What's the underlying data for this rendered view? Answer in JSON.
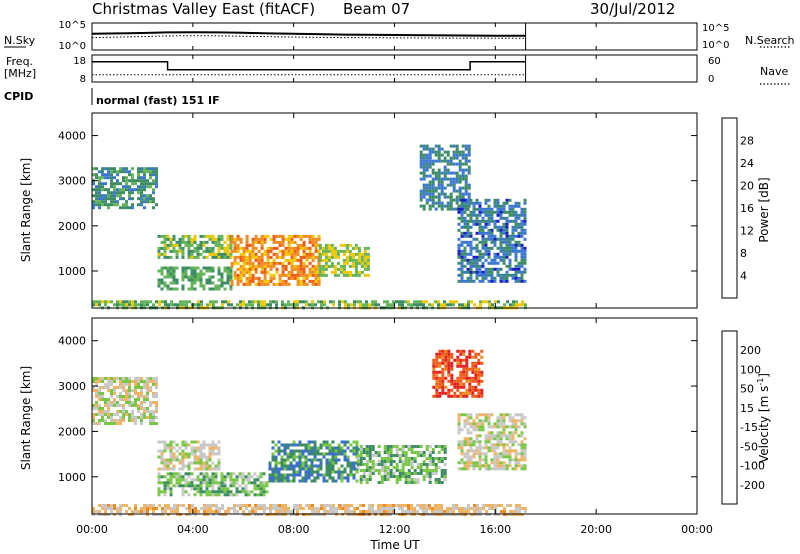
{
  "header": {
    "title": "Christmas Valley East (fitACF)",
    "beam": "Beam 07",
    "date": "30/Jul/2012"
  },
  "strip_labels": {
    "nsky": "N.Sky",
    "nsearch": "N.Search",
    "freq_line1": "Freq.",
    "freq_line2": "[MHz]",
    "nave": "Nave",
    "cpid": "CPID",
    "cpid_value": "normal (fast) 151 IF"
  },
  "strip_ticks": {
    "nsky_left": [
      "10^5",
      "10^0"
    ],
    "nsky_right": [
      "10^5",
      "10^0"
    ],
    "freq_left": [
      "18",
      "8"
    ],
    "freq_right": [
      "60",
      "0"
    ]
  },
  "colors": {
    "power": [
      "#1c1cc8",
      "#3c78d2",
      "#3c8c64",
      "#64b45a",
      "#f0c800",
      "#f08c1e",
      "#f05a14",
      "#e61e1e"
    ],
    "velocity": [
      "#1e1ec8",
      "#3c6ed2",
      "#3c8c64",
      "#78c846",
      "#c8c8c8",
      "#f0b464",
      "#f08c1e",
      "#f05a14",
      "#e61e1e"
    ]
  },
  "chart_data": [
    {
      "type": "line",
      "panel": "N.Sky / N.Search",
      "x": [
        0,
        1,
        2,
        3,
        4,
        5,
        6,
        7,
        8,
        10,
        12,
        14,
        16,
        17.2
      ],
      "series": [
        {
          "name": "N.Sky",
          "values": [
            1000,
            1200,
            1400,
            1800,
            2000,
            1800,
            1500,
            1200,
            1000,
            700,
            600,
            500,
            450,
            450
          ]
        },
        {
          "name": "N.Search",
          "values": [
            200,
            250,
            300,
            400,
            450,
            420,
            350,
            300,
            250,
            200,
            180,
            160,
            150,
            150
          ]
        }
      ],
      "ylabel_left": "N.Sky",
      "ylabel_right": "N.Search",
      "log_scale": true,
      "ylim": [
        1,
        100000
      ]
    },
    {
      "type": "line",
      "panel": "Freq. / Nave",
      "x": [
        0,
        3,
        3,
        15,
        15,
        17.2
      ],
      "series": [
        {
          "name": "Freq.",
          "values": [
            15.5,
            15.5,
            12.5,
            12.5,
            15.5,
            15.5
          ]
        },
        {
          "name": "Nave",
          "values": [
            16,
            16,
            16,
            16,
            16,
            16
          ]
        }
      ],
      "ylabel_left": "Freq. [MHz]",
      "ylabel_right": "Nave",
      "ylim_left": [
        8,
        18
      ],
      "ylim_right": [
        0,
        60
      ]
    },
    {
      "type": "heatmap",
      "panel": "Power",
      "xlabel": "Time UT",
      "ylabel": "Slant Range [km]",
      "x_ticks": [
        "00:00",
        "04:00",
        "08:00",
        "12:00",
        "16:00",
        "20:00",
        "00:00"
      ],
      "xlim": [
        0,
        24
      ],
      "y_ticks": [
        1000,
        2000,
        3000,
        4000
      ],
      "ylim": [
        180,
        4500
      ],
      "colorbar_label": "Power [dB]",
      "colorbar_ticks": [
        4,
        8,
        12,
        16,
        20,
        24,
        28
      ],
      "colorbar_range": [
        0,
        30
      ],
      "regions": [
        {
          "t": [
            0,
            2.6
          ],
          "r": [
            2400,
            3300
          ],
          "value": 10
        },
        {
          "t": [
            2.6,
            5.5
          ],
          "r": [
            1300,
            1800
          ],
          "value": 14
        },
        {
          "t": [
            2.6,
            5.5
          ],
          "r": [
            600,
            1100
          ],
          "value": 12
        },
        {
          "t": [
            5.5,
            9
          ],
          "r": [
            700,
            1800
          ],
          "value": 22
        },
        {
          "t": [
            9,
            11
          ],
          "r": [
            900,
            1600
          ],
          "value": 16
        },
        {
          "t": [
            13,
            15
          ],
          "r": [
            2400,
            3800
          ],
          "value": 8
        },
        {
          "t": [
            14.5,
            17.2
          ],
          "r": [
            800,
            2600
          ],
          "value": 7
        },
        {
          "t": [
            0,
            17.2
          ],
          "r": [
            180,
            350
          ],
          "value": 14
        }
      ]
    },
    {
      "type": "heatmap",
      "panel": "Velocity",
      "xlabel": "Time UT",
      "ylabel": "Slant Range [km]",
      "x_ticks": [
        "00:00",
        "04:00",
        "08:00",
        "12:00",
        "16:00",
        "20:00",
        "00:00"
      ],
      "xlim": [
        0,
        24
      ],
      "y_ticks": [
        1000,
        2000,
        3000,
        4000
      ],
      "ylim": [
        180,
        4500
      ],
      "colorbar_label": "Velocity [m s^-1]",
      "colorbar_ticks": [
        200,
        100,
        50,
        15,
        -15,
        -50,
        -100,
        -200
      ],
      "colorbar_range": [
        -250,
        250
      ],
      "regions": [
        {
          "t": [
            0,
            2.6
          ],
          "r": [
            2200,
            3200
          ],
          "value": 0
        },
        {
          "t": [
            2.6,
            5.0
          ],
          "r": [
            1200,
            1800
          ],
          "value": 0
        },
        {
          "t": [
            2.6,
            7.0
          ],
          "r": [
            600,
            1100
          ],
          "value": 60
        },
        {
          "t": [
            7.0,
            10.5
          ],
          "r": [
            900,
            1800
          ],
          "value": 120
        },
        {
          "t": [
            10.5,
            14
          ],
          "r": [
            900,
            1700
          ],
          "value": 70
        },
        {
          "t": [
            13.5,
            15.5
          ],
          "r": [
            2800,
            3800
          ],
          "value": -180
        },
        {
          "t": [
            14.5,
            17.2
          ],
          "r": [
            1200,
            2400
          ],
          "value": 0
        },
        {
          "t": [
            0,
            17.2
          ],
          "r": [
            180,
            400
          ],
          "value": -40
        }
      ]
    }
  ],
  "axis_labels": {
    "slant_range": "Slant Range [km]",
    "time": "Time UT",
    "power_cb": "Power [dB]",
    "velocity_cb": "Velocity [m s",
    "velocity_cb_sup": "-1",
    "velocity_cb_end": "]"
  }
}
